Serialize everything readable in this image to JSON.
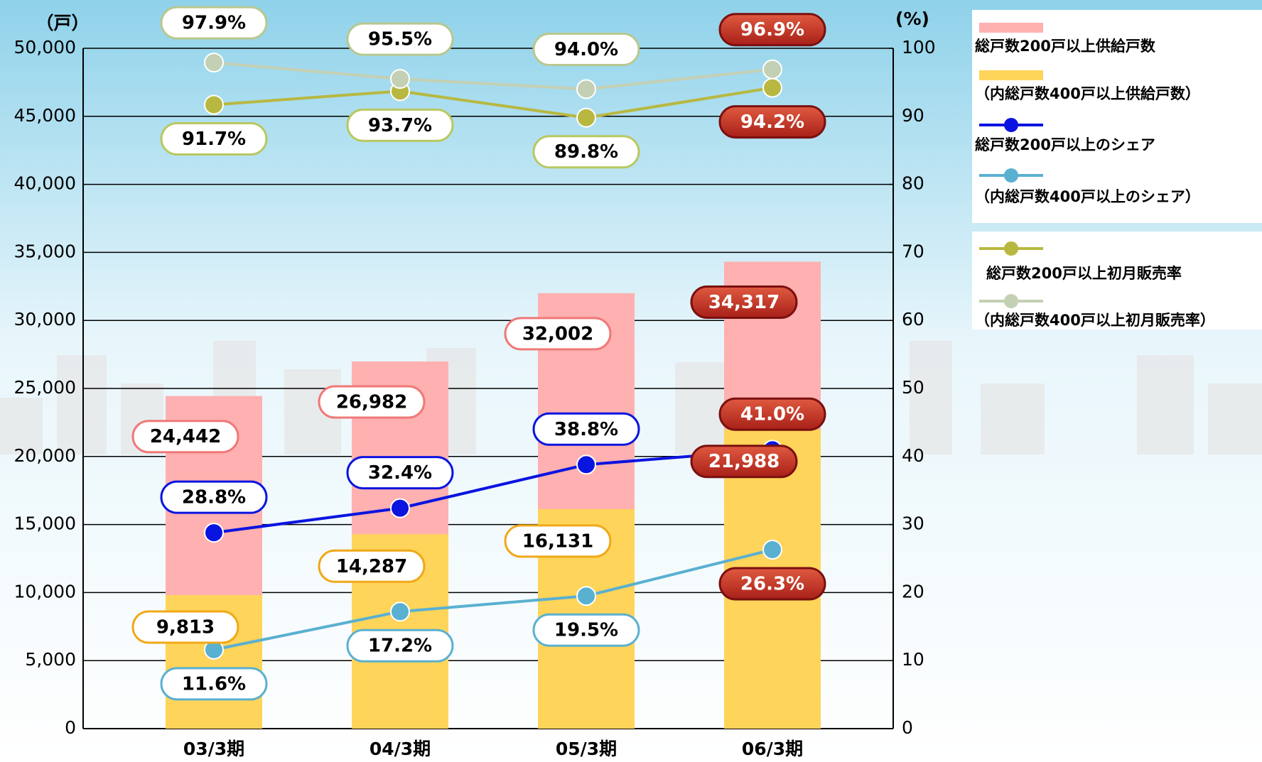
{
  "chart_data": {
    "type": "bar",
    "y_axis_label": "（戸）",
    "y2_axis_label": "(%)",
    "categories": [
      "03/3期",
      "04/3期",
      "05/3期",
      "06/3期"
    ],
    "ylim": [
      0,
      50000
    ],
    "yticks": [
      0,
      {
        "value": 5000,
        "label": "5,000"
      },
      {
        "value": 10000,
        "label": "10,000"
      },
      {
        "value": 15000,
        "label": "15,000"
      },
      {
        "value": 20000,
        "label": "20,000"
      },
      {
        "value": 25000,
        "label": "25,000"
      },
      {
        "value": 30000,
        "label": "30,000"
      },
      {
        "value": 35000,
        "label": "35,000"
      },
      {
        "value": 40000,
        "label": "40,000"
      },
      {
        "value": 45000,
        "label": "45,000"
      },
      {
        "value": 50000,
        "label": "50,000"
      }
    ],
    "y2lim": [
      0,
      100
    ],
    "y2ticks": [
      0,
      10,
      20,
      30,
      40,
      50,
      60,
      70,
      80,
      90,
      100
    ],
    "grid": true,
    "series": [
      {
        "name": "総戸数200戸以上供給戸数",
        "type": "bar",
        "color": "#ffb0b0",
        "label_color": "#f07878",
        "values": [
          24442,
          26982,
          32002,
          34317
        ],
        "value_labels": [
          "24,442",
          "26,982",
          "32,002",
          "34,317"
        ]
      },
      {
        "name": "（内総戸数400戸以上供給戸数）",
        "type": "bar",
        "color": "#ffd45a",
        "label_color": "#f0a818",
        "values": [
          9813,
          14287,
          16131,
          21988
        ],
        "value_labels": [
          "9,813",
          "14,287",
          "16,131",
          "21,988"
        ]
      },
      {
        "name": "総戸数200戸以上のシェア",
        "type": "line",
        "axis": "y2",
        "color": "#0a14e0",
        "label_color": "#0a14e0",
        "values": [
          28.8,
          32.4,
          38.8,
          41.0
        ],
        "value_labels": [
          "28.8%",
          "32.4%",
          "38.8%",
          "41.0%"
        ]
      },
      {
        "name": "（内総戸数400戸以上のシェア）",
        "type": "line",
        "axis": "y2",
        "color": "#5ab0d0",
        "label_color": "#5ab0d0",
        "values": [
          11.6,
          17.2,
          19.5,
          26.3
        ],
        "value_labels": [
          "11.6%",
          "17.2%",
          "19.5%",
          "26.3%"
        ]
      },
      {
        "name": "総戸数200戸以上初月販売率",
        "type": "line",
        "axis": "y2",
        "color": "#b8b840",
        "label_color": "#b8c860",
        "values": [
          91.7,
          93.7,
          89.8,
          94.2
        ],
        "value_labels": [
          "91.7%",
          "93.7%",
          "89.8%",
          "94.2%"
        ]
      },
      {
        "name": "（内総戸数400戸以上初月販売率）",
        "type": "line",
        "axis": "y2",
        "color": "#c4d0b4",
        "label_color": "#b8c890",
        "values": [
          97.9,
          95.5,
          94.0,
          96.9
        ],
        "value_labels": [
          "97.9%",
          "95.5%",
          "94.0%",
          "96.9%"
        ]
      }
    ]
  }
}
